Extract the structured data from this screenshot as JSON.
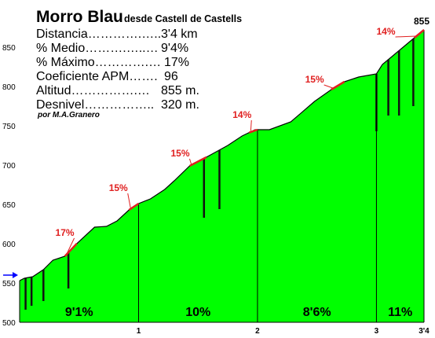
{
  "header": {
    "title": "Morro Blau",
    "subtitle": "desde Castell de Castells",
    "credit": "por M.A.Granero",
    "summit_label": "855"
  },
  "stats": [
    {
      "label": "Distancia………….…..",
      "value": "3'4 km"
    },
    {
      "label": "% Medio……….…..…",
      "value": "9'4%"
    },
    {
      "label": "% Máximo………….…",
      "value": "17%"
    },
    {
      "label": "Coeficiente APM…….",
      "value": "96"
    },
    {
      "label": "Altitud…………….…",
      "value": "855 m."
    },
    {
      "label": "Desnivel……………..",
      "value": "320 m."
    }
  ],
  "colors": {
    "fill": "#00ff00",
    "outline": "#000000",
    "steep_segment": "#e02020",
    "label": "#e02020",
    "arrow": "#0000ff"
  },
  "chart_data": {
    "type": "area",
    "title": "Morro Blau",
    "subtitle": "desde Castell de Castells",
    "xlabel": "",
    "ylabel": "",
    "xlim": [
      0,
      3.4
    ],
    "ylim": [
      500,
      880
    ],
    "x_ticks": [
      "1",
      "2",
      "3",
      "3'4"
    ],
    "y_ticks": [
      500,
      550,
      600,
      650,
      700,
      750,
      800,
      850
    ],
    "profile": [
      {
        "x": 0.0,
        "y": 553
      },
      {
        "x": 0.04,
        "y": 556
      },
      {
        "x": 0.11,
        "y": 558
      },
      {
        "x": 0.2,
        "y": 567
      },
      {
        "x": 0.28,
        "y": 579
      },
      {
        "x": 0.38,
        "y": 584
      },
      {
        "x": 0.48,
        "y": 600
      },
      {
        "x": 0.63,
        "y": 621
      },
      {
        "x": 0.73,
        "y": 622
      },
      {
        "x": 0.82,
        "y": 629
      },
      {
        "x": 0.92,
        "y": 643
      },
      {
        "x": 1.0,
        "y": 651
      },
      {
        "x": 1.1,
        "y": 657
      },
      {
        "x": 1.22,
        "y": 669
      },
      {
        "x": 1.3,
        "y": 680
      },
      {
        "x": 1.43,
        "y": 699
      },
      {
        "x": 1.57,
        "y": 710
      },
      {
        "x": 1.75,
        "y": 725
      },
      {
        "x": 1.87,
        "y": 737
      },
      {
        "x": 1.98,
        "y": 745
      },
      {
        "x": 2.1,
        "y": 745
      },
      {
        "x": 2.28,
        "y": 755
      },
      {
        "x": 2.48,
        "y": 781
      },
      {
        "x": 2.62,
        "y": 796
      },
      {
        "x": 2.73,
        "y": 806
      },
      {
        "x": 2.85,
        "y": 812
      },
      {
        "x": 3.0,
        "y": 816
      },
      {
        "x": 3.05,
        "y": 828
      },
      {
        "x": 3.13,
        "y": 838
      },
      {
        "x": 3.28,
        "y": 857
      },
      {
        "x": 3.4,
        "y": 872
      }
    ],
    "km_markers": [
      {
        "x": 1.0,
        "label": "1"
      },
      {
        "x": 2.0,
        "label": "2"
      },
      {
        "x": 3.0,
        "label": "3"
      },
      {
        "x": 3.4,
        "label": "3'4"
      }
    ],
    "segment_gradients": [
      {
        "from": 0.0,
        "to": 1.0,
        "label": "9'1%"
      },
      {
        "from": 1.0,
        "to": 2.0,
        "label": "10%"
      },
      {
        "from": 2.0,
        "to": 3.0,
        "label": "8'6%"
      },
      {
        "from": 3.0,
        "to": 3.4,
        "label": "11%"
      }
    ],
    "steep_sections": [
      {
        "x0": 0.38,
        "x1": 0.48,
        "label": "17%",
        "label_x": 0.38,
        "label_y": 610
      },
      {
        "x0": 0.92,
        "x1": 1.0,
        "label": "15%",
        "label_x": 0.83,
        "label_y": 667
      },
      {
        "x0": 1.43,
        "x1": 1.57,
        "label": "15%",
        "label_x": 1.35,
        "label_y": 711
      },
      {
        "x0": 1.93,
        "x1": 2.0,
        "label": "14%",
        "label_x": 1.87,
        "label_y": 760
      },
      {
        "x0": 2.62,
        "x1": 2.73,
        "label": "15%",
        "label_x": 2.48,
        "label_y": 805
      },
      {
        "x0": 3.32,
        "x1": 3.4,
        "label": "14%",
        "label_x": 3.08,
        "label_y": 866
      }
    ],
    "dips": [
      {
        "x": 0.05,
        "low": 516
      },
      {
        "x": 0.1,
        "low": 521
      },
      {
        "x": 0.2,
        "low": 527
      },
      {
        "x": 0.41,
        "low": 543
      },
      {
        "x": 1.55,
        "low": 633
      },
      {
        "x": 1.68,
        "low": 644
      },
      {
        "x": 3.0,
        "low": 743
      },
      {
        "x": 3.1,
        "low": 763
      },
      {
        "x": 3.19,
        "low": 763
      },
      {
        "x": 3.31,
        "low": 775
      }
    ],
    "start_marker": {
      "x": 0.0,
      "y": 560
    }
  }
}
